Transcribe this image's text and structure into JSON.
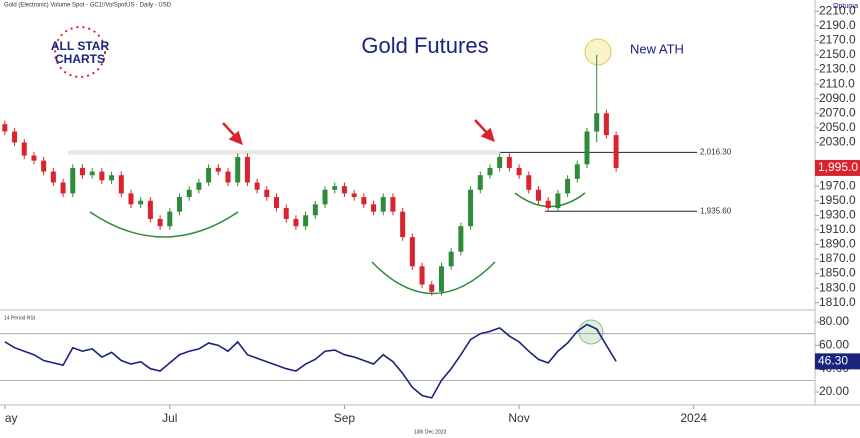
{
  "chart_data": [
    {
      "type": "candlestick",
      "header": "Gold (Electronic) Volume Spot - GC1!/VolSpotUS - Daily - USD",
      "title": "Gold Futures",
      "annotation": "New ATH",
      "logo": [
        "ALL STAR",
        "CHARTS"
      ],
      "brand": "Optuma",
      "up_color": "#2e8b3a",
      "down_color": "#d9232d",
      "xlim": [
        -0.5,
        83.5
      ],
      "ylim": [
        1800,
        2220
      ],
      "yticks": [
        {
          "value": 2210,
          "label": "2210.0"
        },
        {
          "value": 2190,
          "label": "2190.0"
        },
        {
          "value": 2170,
          "label": "2170.0"
        },
        {
          "value": 2150,
          "label": "2150.0"
        },
        {
          "value": 2130,
          "label": "2130.0"
        },
        {
          "value": 2110,
          "label": "2110.0"
        },
        {
          "value": 2090,
          "label": "2090.0"
        },
        {
          "value": 2070,
          "label": "2070.0"
        },
        {
          "value": 2050,
          "label": "2050.0"
        },
        {
          "value": 2030,
          "label": "2030.0"
        },
        {
          "value": 1970,
          "label": "1970.0"
        },
        {
          "value": 1950,
          "label": "1950.0"
        },
        {
          "value": 1930,
          "label": "1930.0"
        },
        {
          "value": 1910,
          "label": "1910.0"
        },
        {
          "value": 1890,
          "label": "1890.0"
        },
        {
          "value": 1870,
          "label": "1870.0"
        },
        {
          "value": 1850,
          "label": "1850.0"
        },
        {
          "value": 1830,
          "label": "1830.0"
        },
        {
          "value": 1810,
          "label": "1810.0"
        }
      ],
      "levels": [
        {
          "value": 2016.3,
          "label": "2,016.30"
        },
        {
          "value": 1935.6,
          "label": "1,935.60"
        }
      ],
      "current": {
        "value": 1995,
        "label": "1,995.0"
      },
      "open": [
        2055,
        2045,
        2030,
        2012,
        2005,
        1990,
        1975,
        1960,
        1995,
        1985,
        1990,
        1978,
        1985,
        1960,
        1945,
        1950,
        1925,
        1915,
        1935,
        1955,
        1965,
        1975,
        1995,
        1990,
        1975,
        2010,
        1975,
        1965,
        1955,
        1940,
        1925,
        1915,
        1930,
        1945,
        1965,
        1970,
        1960,
        1955,
        1945,
        1935,
        1955,
        1935,
        1900,
        1860,
        1835,
        1825,
        1860,
        1880,
        1915,
        1965,
        1985,
        1995,
        2010,
        1995,
        1985,
        1965,
        1950,
        1940,
        1960,
        1980,
        2000,
        2045,
        2070,
        2040
      ],
      "high": [
        2060,
        2050,
        2035,
        2017,
        2010,
        1995,
        1980,
        2000,
        2000,
        1995,
        1995,
        1990,
        1990,
        1965,
        1955,
        1955,
        1930,
        1940,
        1960,
        1970,
        1980,
        2000,
        2000,
        1995,
        2015,
        2015,
        1980,
        1970,
        1960,
        1945,
        1930,
        1935,
        1950,
        1970,
        1975,
        1975,
        1965,
        1960,
        1950,
        1960,
        1960,
        1940,
        1905,
        1865,
        1840,
        1865,
        1885,
        1920,
        1970,
        1990,
        2000,
        2015,
        2015,
        2000,
        1990,
        1970,
        1955,
        1965,
        1985,
        2005,
        2050,
        2150,
        2075,
        2045
      ],
      "low": [
        2040,
        2025,
        2007,
        2000,
        1985,
        1970,
        1955,
        1955,
        1980,
        1980,
        1973,
        1973,
        1955,
        1940,
        1940,
        1920,
        1910,
        1910,
        1930,
        1950,
        1960,
        1970,
        1985,
        1970,
        1970,
        1970,
        1960,
        1950,
        1935,
        1920,
        1910,
        1910,
        1925,
        1940,
        1960,
        1955,
        1950,
        1940,
        1930,
        1930,
        1930,
        1895,
        1855,
        1830,
        1820,
        1820,
        1855,
        1875,
        1910,
        1960,
        1980,
        1990,
        1990,
        1980,
        1960,
        1945,
        1935,
        1935,
        1955,
        1975,
        1995,
        2030,
        2035,
        1990
      ],
      "close": [
        2045,
        2030,
        2012,
        2005,
        1990,
        1975,
        1960,
        1995,
        1985,
        1990,
        1978,
        1985,
        1960,
        1945,
        1950,
        1925,
        1915,
        1935,
        1955,
        1965,
        1975,
        1995,
        1990,
        1975,
        2010,
        1975,
        1965,
        1955,
        1940,
        1925,
        1915,
        1930,
        1945,
        1965,
        1970,
        1960,
        1955,
        1945,
        1935,
        1955,
        1935,
        1900,
        1860,
        1835,
        1825,
        1860,
        1880,
        1915,
        1965,
        1985,
        1995,
        2010,
        1995,
        1985,
        1965,
        1950,
        1940,
        1960,
        1980,
        2000,
        2045,
        2070,
        2040,
        1995
      ]
    },
    {
      "type": "line",
      "title": "14 Period RSI",
      "color": "#1a237e",
      "xlim": [
        -0.5,
        83.5
      ],
      "ylim": [
        8.9,
        88.6
      ],
      "yticks": [
        {
          "value": 80,
          "label": "80.00"
        },
        {
          "value": 60,
          "label": "60.00"
        },
        {
          "value": 40,
          "label": "40.00"
        },
        {
          "value": 20,
          "label": "20.00"
        }
      ],
      "levels": [
        70,
        30
      ],
      "current": {
        "value": 46.3,
        "label": "46.30"
      },
      "xticks": [
        {
          "value": 0,
          "label": "ay"
        },
        {
          "value": 17,
          "label": "Jul"
        },
        {
          "value": 35,
          "label": "Sep"
        },
        {
          "value": 53,
          "label": "Nov"
        },
        {
          "value": 71,
          "label": "2024"
        }
      ],
      "date_label": "13th Dec 2023",
      "values": [
        63,
        58,
        55,
        52,
        47,
        45,
        43,
        58,
        55,
        57,
        50,
        54,
        47,
        44,
        46,
        40,
        38,
        45,
        52,
        55,
        57,
        62,
        60,
        55,
        63,
        52,
        49,
        46,
        43,
        40,
        38,
        44,
        48,
        55,
        56,
        52,
        50,
        47,
        44,
        52,
        46,
        36,
        24,
        17,
        15,
        30,
        40,
        52,
        65,
        70,
        72,
        75,
        68,
        63,
        55,
        48,
        45,
        55,
        62,
        72,
        78,
        74,
        60,
        46.3
      ]
    }
  ]
}
